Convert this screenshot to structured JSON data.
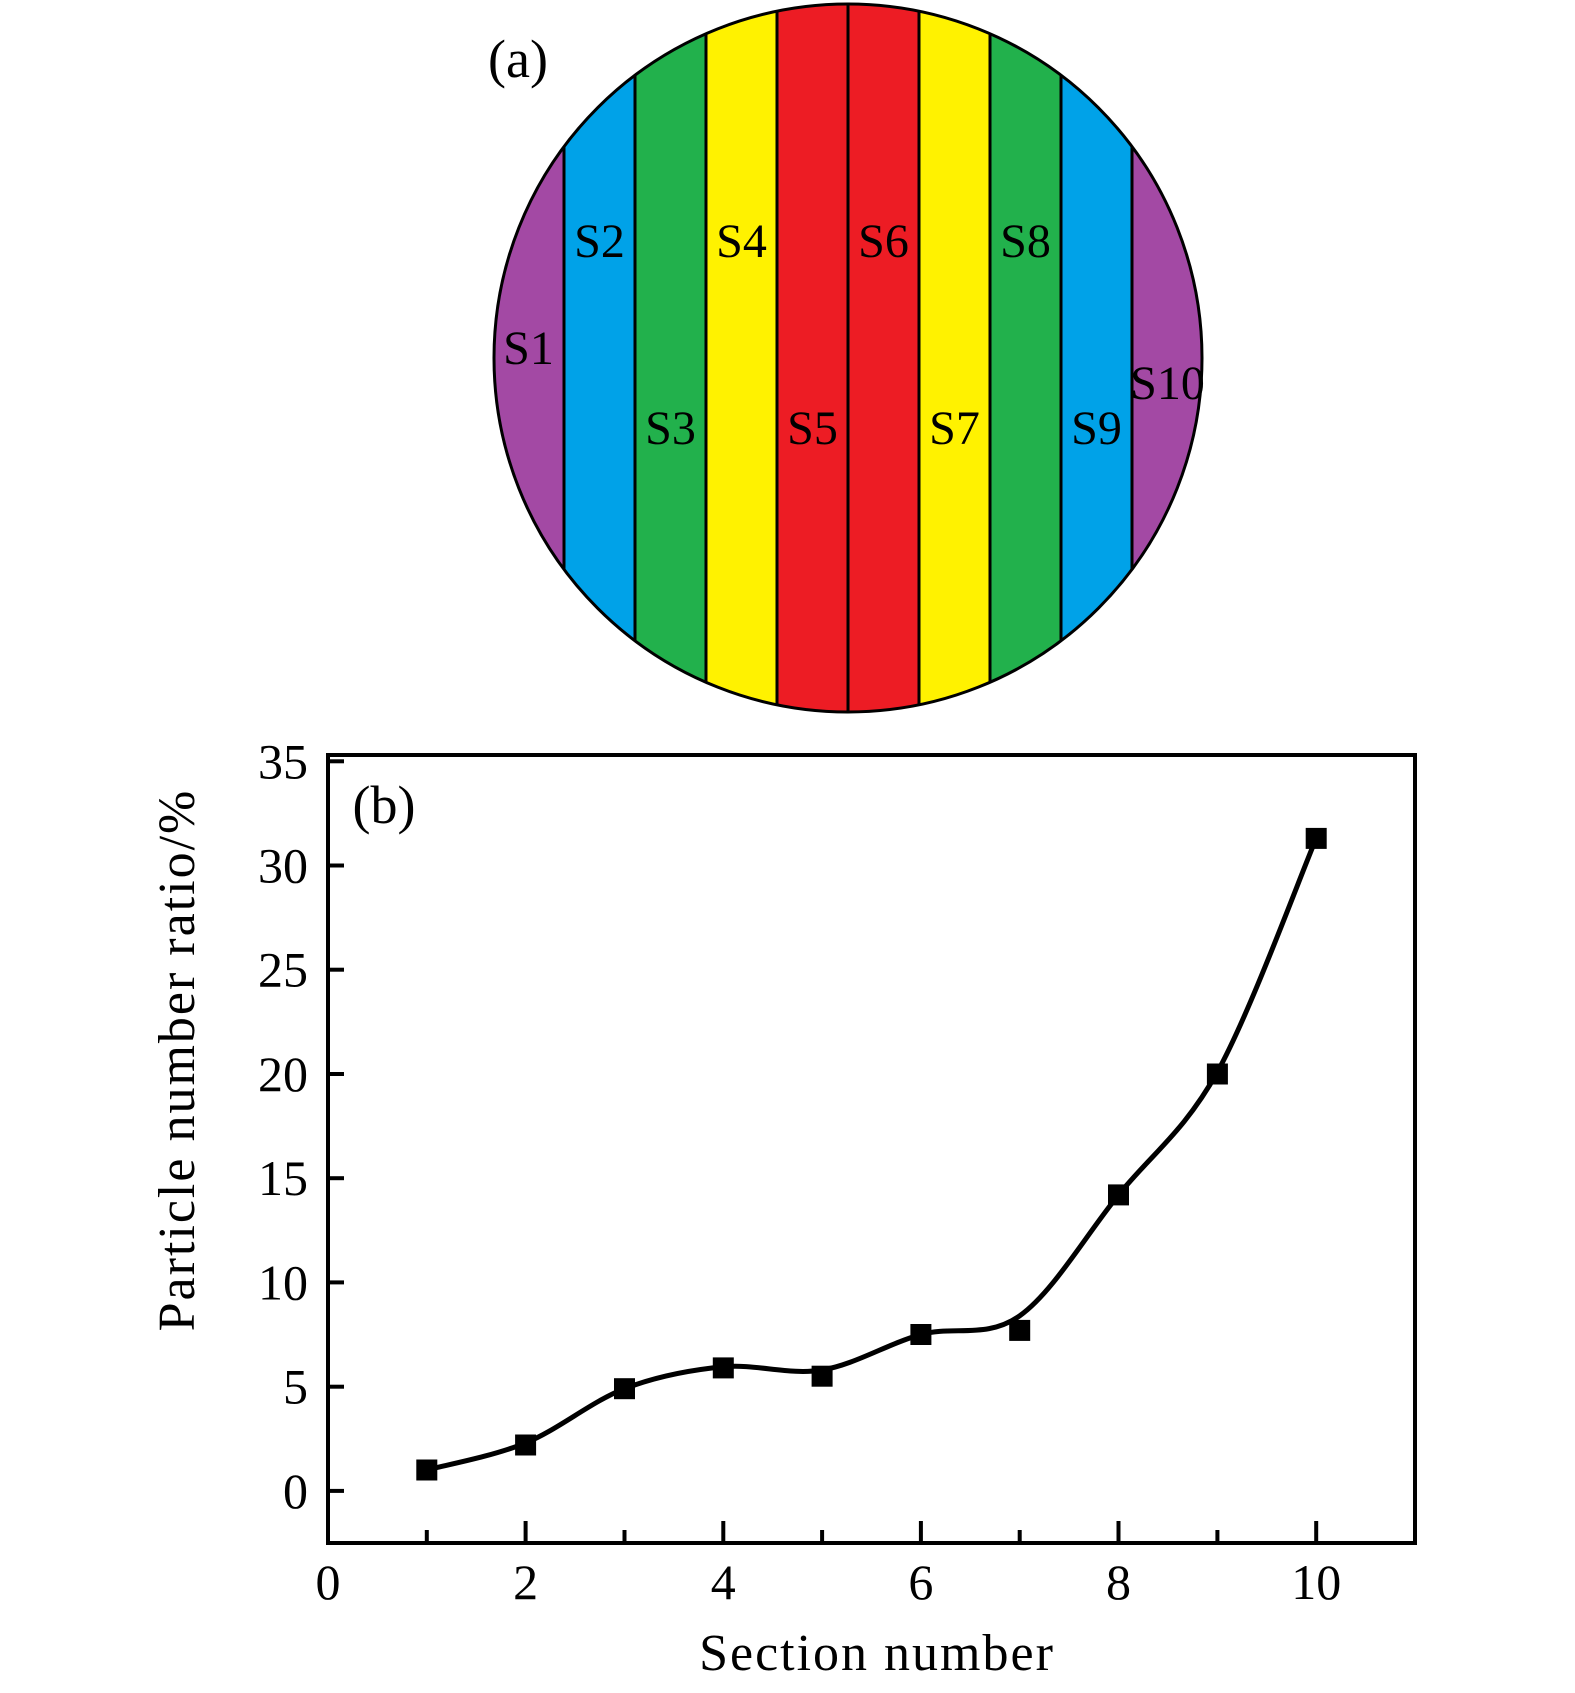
{
  "panel_a": {
    "tag": "(a)",
    "outline_color": "#000000",
    "sections": [
      {
        "label": "S1",
        "color": "#A349A4",
        "label_row": "mid"
      },
      {
        "label": "S2",
        "color": "#00A2E8",
        "label_row": "top"
      },
      {
        "label": "S3",
        "color": "#22B14C",
        "label_row": "bottom"
      },
      {
        "label": "S4",
        "color": "#FFF200",
        "label_row": "top"
      },
      {
        "label": "S5",
        "color": "#ED1C24",
        "label_row": "bottom"
      },
      {
        "label": "S6",
        "color": "#ED1C24",
        "label_row": "top"
      },
      {
        "label": "S7",
        "color": "#FFF200",
        "label_row": "bottom"
      },
      {
        "label": "S8",
        "color": "#22B14C",
        "label_row": "top"
      },
      {
        "label": "S9",
        "color": "#00A2E8",
        "label_row": "bottom"
      },
      {
        "label": "S10",
        "color": "#A349A4",
        "label_row": "mid-low"
      }
    ]
  },
  "panel_b": {
    "tag": "(b)"
  },
  "chart_data": {
    "type": "line",
    "title": "",
    "xlabel": "Section number",
    "ylabel": "Particle number ratio/%",
    "x": [
      1,
      2,
      3,
      4,
      5,
      6,
      7,
      8,
      9,
      10
    ],
    "y": [
      1.0,
      2.2,
      4.9,
      5.9,
      5.5,
      7.5,
      7.7,
      14.2,
      20.0,
      31.3
    ],
    "smooth_curve_y": [
      1.0,
      2.3,
      4.9,
      5.95,
      5.8,
      7.5,
      8.4,
      14.2,
      20.1,
      31.3
    ],
    "xlim": [
      0,
      11
    ],
    "ylim": [
      -2.5,
      35.3
    ],
    "x_tick_labels": [
      "0",
      "2",
      "4",
      "6",
      "8",
      "10"
    ],
    "x_tick_label_values": [
      0,
      2,
      4,
      6,
      8,
      10
    ],
    "x_major_ticks": [
      2,
      4,
      6,
      8,
      10
    ],
    "x_minor_ticks": [
      1,
      3,
      5,
      7,
      9
    ],
    "y_ticks": [
      0,
      5,
      10,
      15,
      20,
      25,
      30,
      35
    ],
    "marker": "filled-square",
    "line_color": "#000000",
    "axis_color": "#000000",
    "background": "#FFFFFF",
    "grid": false,
    "legend": null
  }
}
